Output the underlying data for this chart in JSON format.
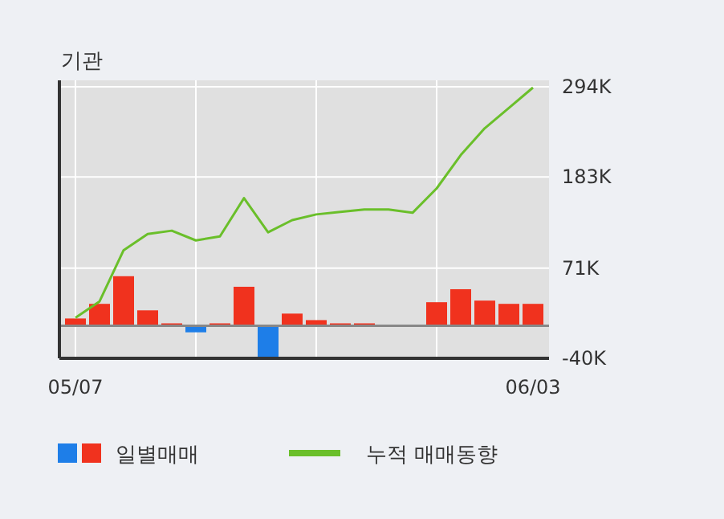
{
  "chart_data": {
    "type": "bar",
    "title": "기관",
    "categories": [
      "05/07",
      null,
      null,
      null,
      null,
      null,
      null,
      null,
      null,
      null,
      null,
      null,
      null,
      null,
      null,
      null,
      null,
      null,
      null,
      "06/03"
    ],
    "series": [
      {
        "name": "일별매매",
        "values": [
          9,
          27,
          61,
          19,
          3,
          -8,
          3,
          48,
          -40,
          15,
          7,
          3,
          3,
          0,
          0,
          29,
          45,
          31,
          27,
          27
        ],
        "colors": [
          "#f0321e",
          "#f0321e",
          "#f0321e",
          "#f0321e",
          "#f0321e",
          "#1e7ee8",
          "#f0321e",
          "#f0321e",
          "#1e7ee8",
          "#f0321e",
          "#f0321e",
          "#f0321e",
          "#f0321e",
          "#f0321e",
          "#f0321e",
          "#f0321e",
          "#f0321e",
          "#f0321e",
          "#f0321e",
          "#f0321e"
        ]
      },
      {
        "name": "누적 매매동향",
        "type": "line",
        "color": "#6abf2a",
        "values": [
          10,
          30,
          93,
          113,
          117,
          105,
          110,
          157,
          115,
          130,
          137,
          140,
          143,
          143,
          139,
          169,
          210,
          243,
          268,
          293
        ]
      }
    ],
    "ylim": [
      -40,
      294
    ],
    "yticks": [
      {
        "value": -40,
        "label": "-40K"
      },
      {
        "value": 71,
        "label": "71K"
      },
      {
        "value": 183,
        "label": "183K"
      },
      {
        "value": 294,
        "label": "294K"
      }
    ],
    "grid": true,
    "legend": "bottom"
  }
}
